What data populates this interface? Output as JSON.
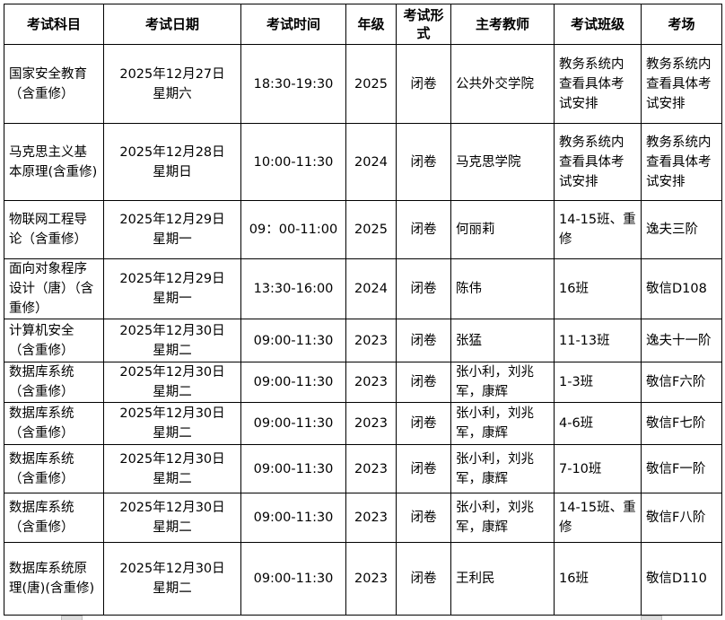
{
  "headers": [
    "考试科目",
    "考试日期",
    "考试时间",
    "年级",
    "考试形式",
    "主考教师",
    "考试班级",
    "考场"
  ],
  "rows": [
    {
      "subject": "国家安全教育（含重修）",
      "date": "2025年12月27日",
      "weekday": "星期六",
      "time": "18:30-19:30",
      "grade": "2025",
      "form": "闭卷",
      "teacher": "公共外交学院",
      "class": "教务系统内查看具体考试安排",
      "room": "教务系统内查看具体考试安排"
    },
    {
      "subject": "马克思主义基本原理(含重修)",
      "date": "2025年12月28日",
      "weekday": "星期日",
      "time": "10:00-11:30",
      "grade": "2024",
      "form": "闭卷",
      "teacher": "马克思学院",
      "class": "教务系统内查看具体考试安排",
      "room": "教务系统内查看具体考试安排"
    },
    {
      "subject": "物联网工程导论（含重修）",
      "date": "2025年12月29日",
      "weekday": "星期一",
      "time": "09：00-11:00",
      "grade": "2025",
      "form": "闭卷",
      "teacher": "何丽莉",
      "class": "14-15班、重修",
      "room": "逸夫三阶"
    },
    {
      "subject": "面向对象程序设计（唐）（含重修）",
      "date": "2025年12月29日",
      "weekday": "星期一",
      "time": "13:30-16:00",
      "grade": "2024",
      "form": "闭卷",
      "teacher": "陈伟",
      "class": "16班",
      "room": "敬信D108"
    },
    {
      "subject": "计算机安全（含重修）",
      "date": "2025年12月30日",
      "weekday": "星期二",
      "time": "09:00-11:30",
      "grade": "2023",
      "form": "闭卷",
      "teacher": "张猛",
      "class": "11-13班",
      "room": "逸夫十一阶"
    },
    {
      "subject": "数据库系统（含重修）",
      "date": "2025年12月30日",
      "weekday": "星期二",
      "time": "09:00-11:30",
      "grade": "2023",
      "form": "闭卷",
      "teacher": "张小利，刘兆军，康辉",
      "class": "1-3班",
      "room": "敬信F六阶"
    },
    {
      "subject": "数据库系统（含重修）",
      "date": "2025年12月30日",
      "weekday": "星期二",
      "time": "09:00-11:30",
      "grade": "2023",
      "form": "闭卷",
      "teacher": "张小利，刘兆军，康辉",
      "class": "4-6班",
      "room": "敬信F七阶"
    },
    {
      "subject": "数据库系统（含重修）",
      "date": "2025年12月30日",
      "weekday": "星期二",
      "time": "09:00-11:30",
      "grade": "2023",
      "form": "闭卷",
      "teacher": "张小利，刘兆军，康辉",
      "class": "7-10班",
      "room": "敬信F一阶"
    },
    {
      "subject": "数据库系统（含重修）",
      "date": "2025年12月30日",
      "weekday": "星期二",
      "time": "09:00-11:30",
      "grade": "2023",
      "form": "闭卷",
      "teacher": "张小利，刘兆军，康辉",
      "class": "14-15班、重修",
      "room": "敬信F八阶"
    },
    {
      "subject": "数据库系统原理(唐)(含重修)",
      "date": "2025年12月30日",
      "weekday": "星期二",
      "time": "09:00-11:30",
      "grade": "2023",
      "form": "闭卷",
      "teacher": "王利民",
      "class": "16班",
      "room": "敬信D110"
    }
  ]
}
